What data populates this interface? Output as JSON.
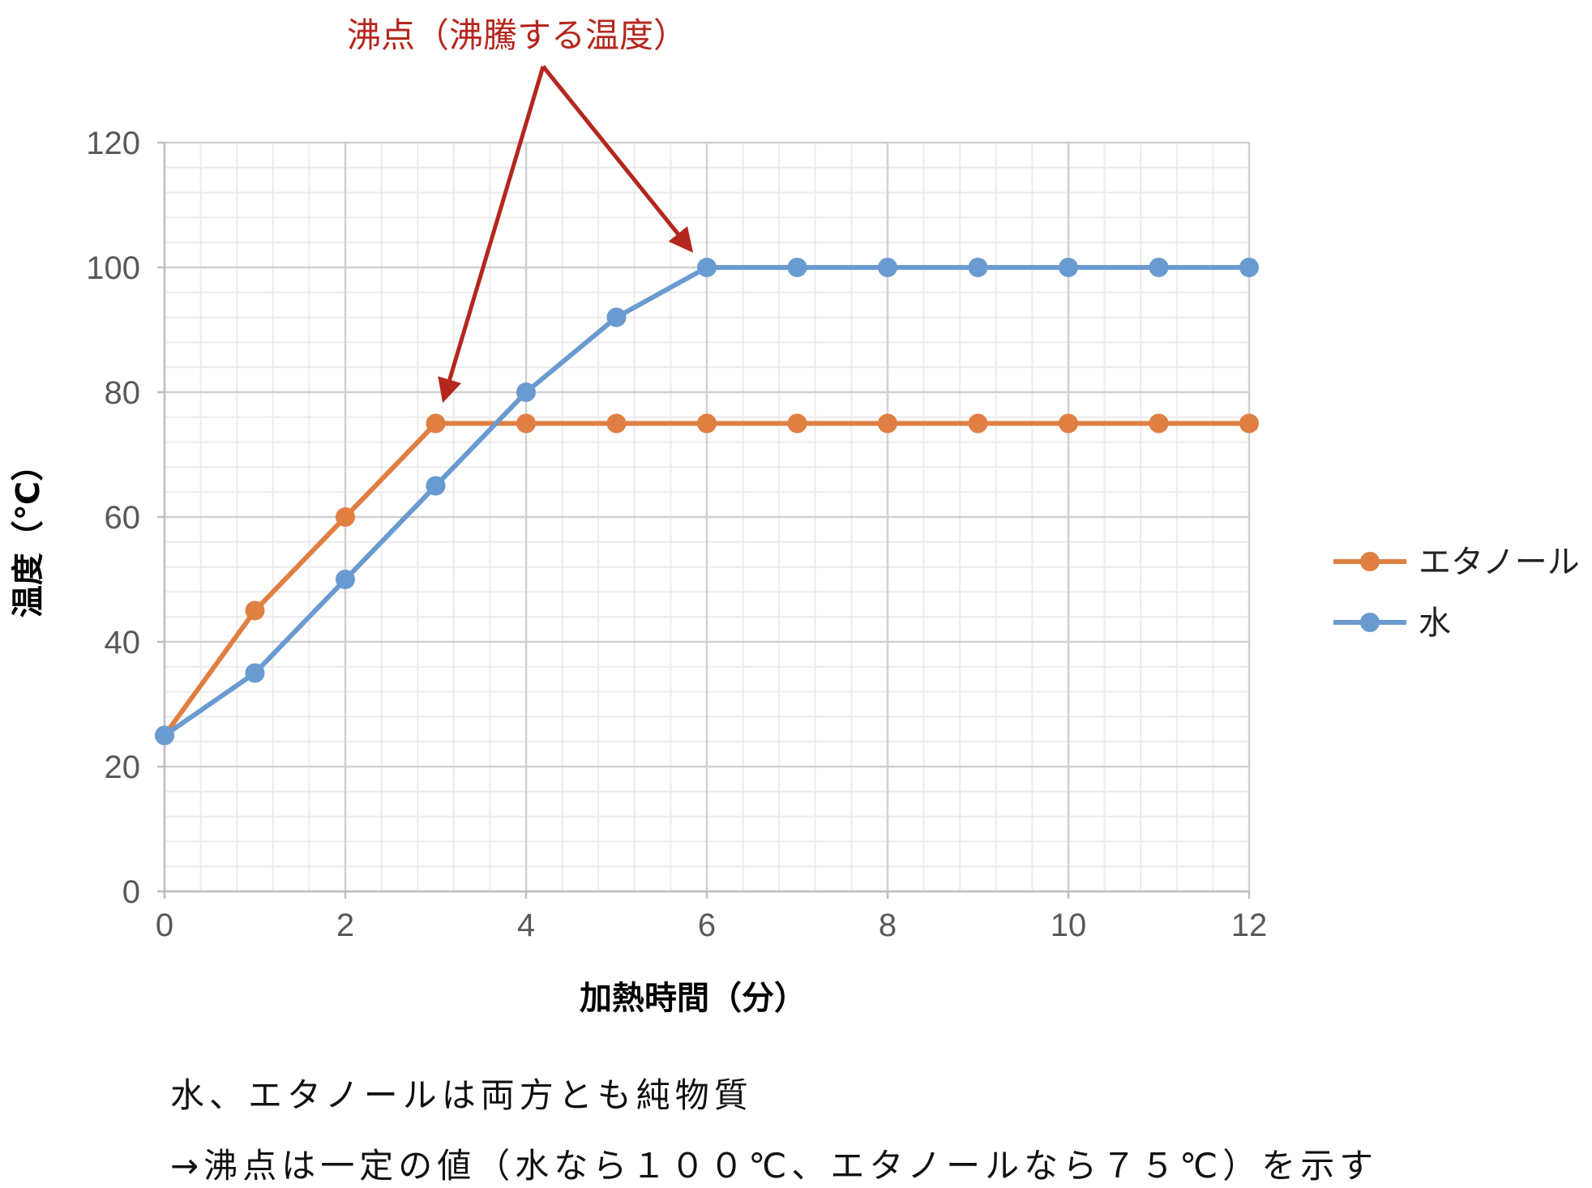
{
  "chart_data": {
    "type": "line",
    "annotation": "沸点（沸騰する温度）",
    "xlabel": "加熱時間（分）",
    "ylabel": "温度（℃）",
    "x": [
      0,
      1,
      2,
      3,
      4,
      5,
      6,
      7,
      8,
      9,
      10,
      11,
      12
    ],
    "xlim": [
      0,
      12
    ],
    "ylim": [
      0,
      120
    ],
    "xticks": [
      "0",
      "2",
      "4",
      "6",
      "8",
      "10",
      "12"
    ],
    "yticks": [
      "0",
      "20",
      "40",
      "60",
      "80",
      "100",
      "120"
    ],
    "grid": true,
    "legend_position": "right",
    "series": [
      {
        "name": "エタノール",
        "color": "#e07f42",
        "values": [
          25,
          45,
          60,
          75,
          75,
          75,
          75,
          75,
          75,
          75,
          75,
          75,
          75
        ]
      },
      {
        "name": "水",
        "color": "#6a9bd0",
        "values": [
          25,
          35,
          50,
          65,
          80,
          92,
          100,
          100,
          100,
          100,
          100,
          100,
          100
        ]
      }
    ],
    "annotation_color": "#b5261e"
  },
  "notes": {
    "line1": "水、エタノールは両方とも純物質",
    "line2": "→沸点は一定の値（水なら１００℃、エタノールなら７５℃）を示す"
  }
}
